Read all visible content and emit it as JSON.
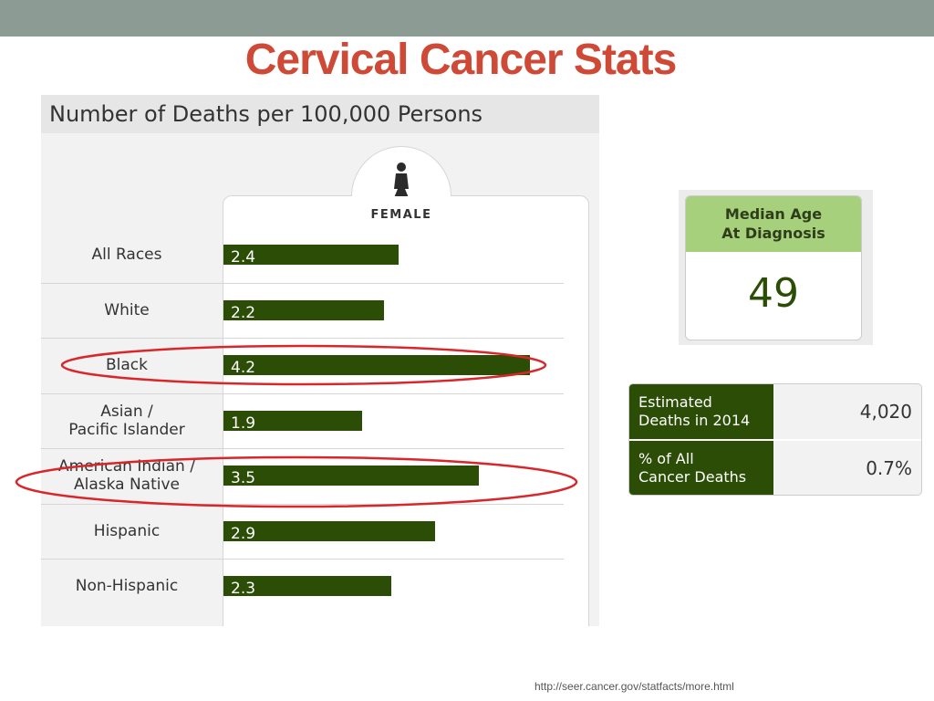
{
  "slide": {
    "title": "Cervical Cancer Stats",
    "source": "http://seer.cancer.gov/statfacts/more.html",
    "colors": {
      "title": "#cf4a36",
      "top_band": "#8c9b94",
      "bar": "#2b4d05",
      "highlight": "#d9262b"
    }
  },
  "chart_data": {
    "type": "bar",
    "orientation": "horizontal",
    "title": "Number of Deaths per 100,000 Persons",
    "panel_label": "FEMALE",
    "panel_icon": "female-figure-icon",
    "categories": [
      "All Races",
      "White",
      "Black",
      "Asian /\nPacific Islander",
      "American Indian /\nAlaska Native",
      "Hispanic",
      "Non-Hispanic"
    ],
    "values": [
      2.4,
      2.2,
      4.2,
      1.9,
      3.5,
      2.9,
      2.3
    ],
    "value_labels": [
      "2.4",
      "2.2",
      "4.2",
      "1.9",
      "3.5",
      "2.9",
      "2.3"
    ],
    "xlim": [
      0,
      4.4
    ],
    "grid": false,
    "highlighted_categories": [
      "Black",
      "American Indian /\nAlaska Native"
    ]
  },
  "median_age": {
    "heading_line1": "Median Age",
    "heading_line2": "At Diagnosis",
    "value": "49"
  },
  "stats_table": [
    {
      "label_line1": "Estimated",
      "label_line2": "Deaths in 2014",
      "value": "4,020"
    },
    {
      "label_line1": "% of All",
      "label_line2": "Cancer Deaths",
      "value": "0.7%"
    }
  ]
}
